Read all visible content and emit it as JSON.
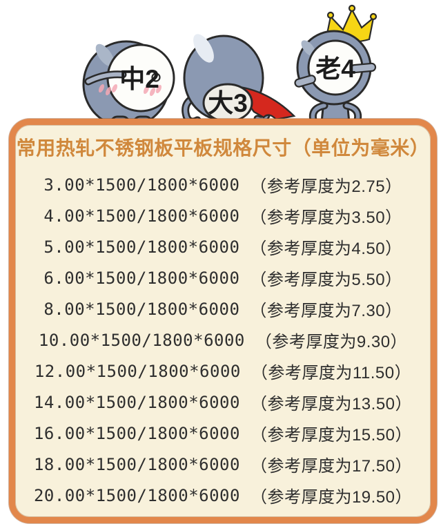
{
  "characters": [
    {
      "label": "中2"
    },
    {
      "label": "大3"
    },
    {
      "label": "老4"
    }
  ],
  "panel": {
    "title": "常用热轧不锈钢板平板规格尺寸（单位为毫米）",
    "rows": [
      {
        "spec": "3.00*1500/1800*6000",
        "note": "（参考厚度为2.75）"
      },
      {
        "spec": "4.00*1500/1800*6000",
        "note": "（参考厚度为3.50）"
      },
      {
        "spec": "5.00*1500/1800*6000",
        "note": "（参考厚度为4.50）"
      },
      {
        "spec": "6.00*1500/1800*6000",
        "note": "（参考厚度为5.50）"
      },
      {
        "spec": "8.00*1500/1800*6000",
        "note": "（参考厚度为7.30）"
      },
      {
        "spec": "10.00*1500/1800*6000",
        "note": "（参考厚度为9.30）"
      },
      {
        "spec": "12.00*1500/1800*6000",
        "note": "（参考厚度为11.50）"
      },
      {
        "spec": "14.00*1500/1800*6000",
        "note": "（参考厚度为13.50）"
      },
      {
        "spec": "16.00*1500/1800*6000",
        "note": "（参考厚度为15.50）"
      },
      {
        "spec": "18.00*1500/1800*6000",
        "note": "（参考厚度为17.50）"
      },
      {
        "spec": "20.00*1500/1800*6000",
        "note": "（参考厚度为19.50）"
      }
    ]
  },
  "colors": {
    "panel_border": "#E2874B",
    "panel_fill": "#F8F1DB",
    "title_text": "#D0883C",
    "row_text": "#2E2E2E",
    "mascot_body": "#8B99B2",
    "outline": "#2A2A2A",
    "crown": "#F6D515",
    "cape": "#D5281E",
    "blush": "#F3A8B4"
  }
}
